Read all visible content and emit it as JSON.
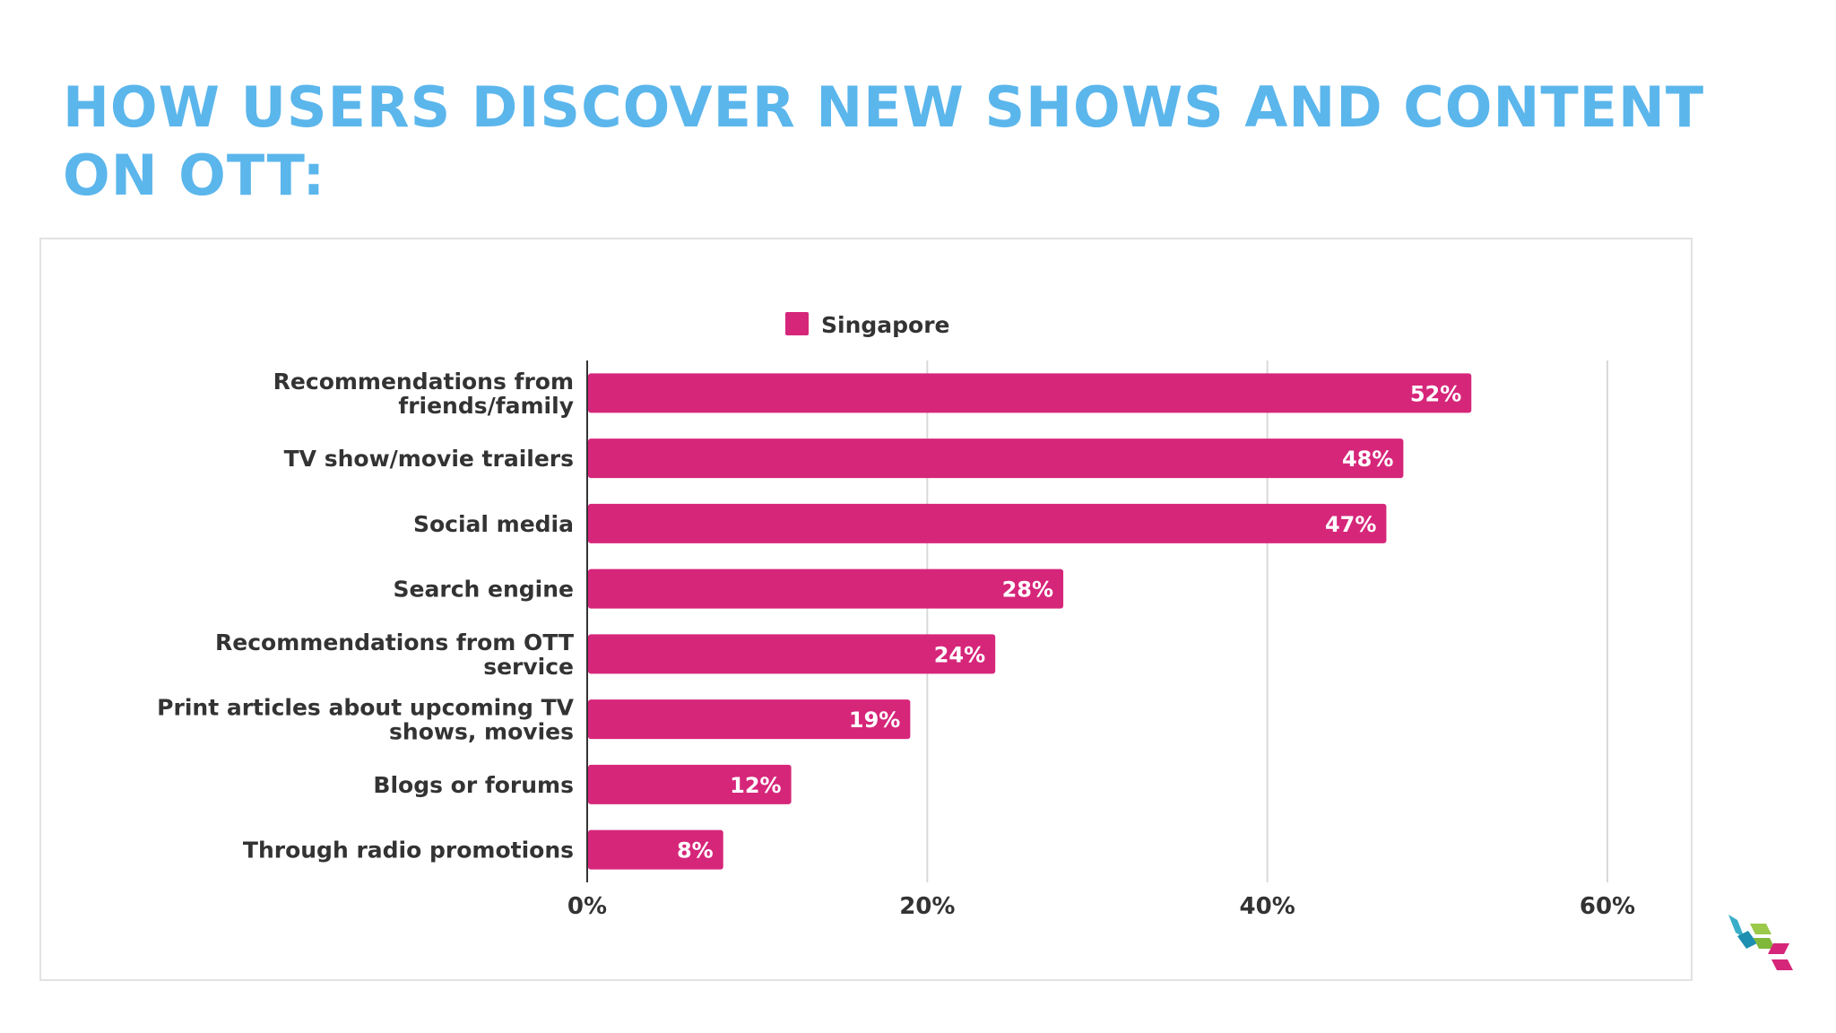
{
  "slide": {
    "title": "HOW USERS DISCOVER NEW SHOWS AND CONTENT ON OTT:"
  },
  "colors": {
    "title": "#5bb6ec",
    "bar": "#d6267a",
    "grid": "#d9d9d9",
    "axis": "#333333",
    "text": "#333333",
    "bar_label": "#ffffff"
  },
  "chart_data": {
    "type": "bar",
    "orientation": "horizontal",
    "title": "",
    "xlabel": "",
    "ylabel": "",
    "categories": [
      [
        "Recommendations from",
        "friends/family"
      ],
      [
        "TV show/movie trailers"
      ],
      [
        "Social media"
      ],
      [
        "Search engine"
      ],
      [
        "Recommendations from OTT",
        "service"
      ],
      [
        "Print articles about upcoming TV",
        "shows, movies"
      ],
      [
        "Blogs or forums"
      ],
      [
        "Through radio promotions"
      ]
    ],
    "series": [
      {
        "name": "Singapore",
        "values": [
          52,
          48,
          47,
          28,
          24,
          19,
          12,
          8
        ],
        "labels": [
          "52%",
          "48%",
          "47%",
          "28%",
          "24%",
          "19%",
          "12%",
          "8%"
        ]
      }
    ],
    "xlim": [
      0,
      60
    ],
    "x_ticks": [
      0,
      20,
      40,
      60
    ],
    "x_tick_labels": [
      "0%",
      "20%",
      "40%",
      "60%"
    ],
    "grid": true,
    "legend": "top-center"
  }
}
